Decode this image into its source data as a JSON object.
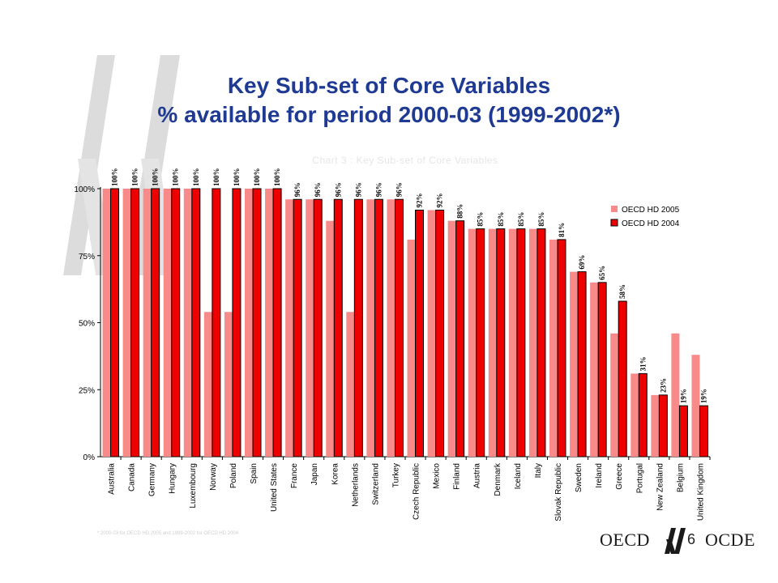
{
  "slide": {
    "title_line1": "Key Sub-set of Core Variables",
    "title_line2": "% available for period 2000-03 (1999-2002*)",
    "footnote": "* 2000-03 for OECD HD 2005 and 1999-2002 for OECD HD 2004",
    "page_number": "6",
    "logo_left": "OECD",
    "logo_right": "OCDE"
  },
  "colors": {
    "title": "#1f3a93",
    "series_2005": "#f98a8a",
    "series_2004": "#ee0000",
    "deco": "#d9d9d9"
  },
  "chart_data": {
    "type": "bar",
    "title": "Chart 3 : Key Sub-set of Core Variables",
    "categories": [
      "Australia",
      "Canada",
      "Germany",
      "Hungary",
      "Luxembourg",
      "Norway",
      "Poland",
      "Spain",
      "United States",
      "France",
      "Japan",
      "Korea",
      "Netherlands",
      "Switzerland",
      "Turkey",
      "Czech Republic",
      "Mexico",
      "Finland",
      "Austria",
      "Denmark",
      "Iceland",
      "Italy",
      "Slovak Republic",
      "Sweden",
      "Ireland",
      "Greece",
      "Portugal",
      "New Zealand",
      "Belgium",
      "United Kingdom"
    ],
    "series": [
      {
        "name": "OECD HD 2005",
        "color": "#f98a8a",
        "values": [
          100,
          100,
          100,
          100,
          100,
          54,
          54,
          100,
          100,
          96,
          96,
          88,
          54,
          96,
          96,
          81,
          92,
          88,
          85,
          85,
          85,
          85,
          81,
          69,
          65,
          46,
          31,
          23,
          46,
          38
        ]
      },
      {
        "name": "OECD HD 2004",
        "color": "#ee0000",
        "values": [
          100,
          100,
          100,
          100,
          100,
          100,
          100,
          100,
          100,
          96,
          96,
          96,
          96,
          96,
          96,
          92,
          92,
          88,
          85,
          85,
          85,
          85,
          81,
          69,
          65,
          58,
          31,
          23,
          19,
          19
        ]
      }
    ],
    "data_labels": [
      "100%",
      "100%",
      "100%",
      "100%",
      "100%",
      "100%",
      "100%",
      "100%",
      "100%",
      "96%",
      "96%",
      "96%",
      "96%",
      "96%",
      "96%",
      "92%",
      "92%",
      "88%",
      "85%",
      "85%",
      "85%",
      "85%",
      "81%",
      "69%",
      "65%",
      "58%",
      "31%",
      "23%",
      "19%",
      "19%"
    ],
    "yticks": [
      "0%",
      "25%",
      "50%",
      "75%",
      "100%"
    ],
    "ylim": [
      0,
      100
    ],
    "legend_position": "right",
    "grid": false
  }
}
